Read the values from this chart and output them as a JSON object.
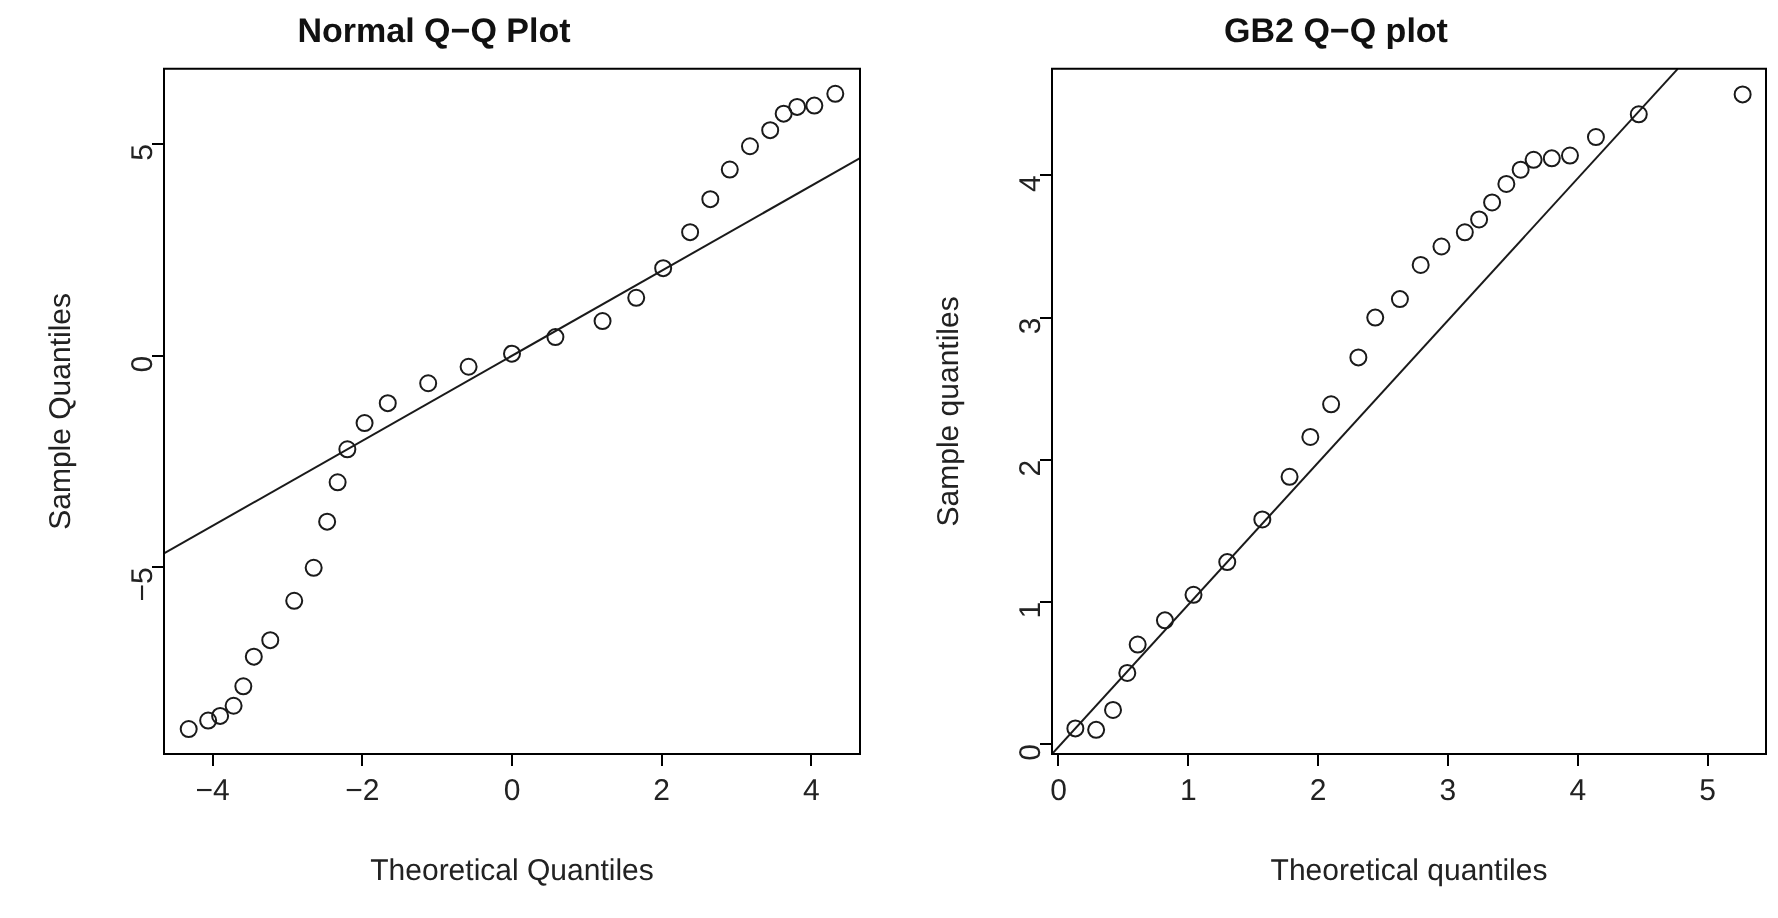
{
  "chart_data": [
    {
      "type": "scatter",
      "title": "Normal Q−Q Plot",
      "xlabel": "Theoretical Quantiles",
      "ylabel": "Sample Quantiles",
      "xlim": [
        -4.65,
        4.65
      ],
      "ylim": [
        -9.41,
        6.78
      ],
      "xticks": [
        -4,
        -2,
        0,
        2,
        4
      ],
      "yticks": [
        -5,
        0,
        5
      ],
      "legend": false,
      "grid": false,
      "series": [
        {
          "marker": "circle",
          "color": "#1a1a1a",
          "x": [
            -4.32,
            -4.06,
            -3.9,
            -3.72,
            -3.59,
            -3.45,
            -3.23,
            -2.91,
            -2.65,
            -2.47,
            -2.33,
            -2.2,
            -1.97,
            -1.66,
            -1.12,
            -0.58,
            0,
            0.58,
            1.21,
            1.66,
            2.02,
            2.38,
            2.65,
            2.91,
            3.18,
            3.45,
            3.63,
            3.81,
            4.04,
            4.32
          ],
          "values": [
            -8.82,
            -8.62,
            -8.51,
            -8.27,
            -7.81,
            -7.11,
            -6.72,
            -5.79,
            -5.01,
            -3.92,
            -2.99,
            -2.21,
            -1.59,
            -1.12,
            -0.65,
            -0.26,
            0.05,
            0.44,
            0.82,
            1.37,
            2.07,
            2.92,
            3.7,
            4.4,
            4.95,
            5.33,
            5.72,
            5.88,
            5.91,
            6.19
          ]
        },
        {
          "type": "line",
          "marker": "none",
          "color": "#1a1a1a",
          "x": [
            -4.65,
            4.65
          ],
          "values": [
            -4.67,
            4.67
          ]
        }
      ]
    },
    {
      "type": "scatter",
      "title": "GB2 Q−Q plot",
      "xlabel": "Theoretical quantiles",
      "ylabel": "Sample quantiles",
      "xlim": [
        -0.05,
        5.45
      ],
      "ylim": [
        -0.07,
        4.75
      ],
      "xticks": [
        0,
        1,
        2,
        3,
        4,
        5
      ],
      "yticks": [
        0,
        1,
        2,
        3,
        4
      ],
      "legend": false,
      "grid": false,
      "series": [
        {
          "marker": "circle",
          "color": "#1a1a1a",
          "x": [
            0.13,
            0.29,
            0.42,
            0.53,
            0.61,
            0.82,
            1.04,
            1.3,
            1.57,
            1.78,
            1.94,
            2.1,
            2.31,
            2.44,
            2.63,
            2.79,
            2.95,
            3.13,
            3.24,
            3.34,
            3.45,
            3.56,
            3.66,
            3.8,
            3.94,
            4.14,
            4.47,
            5.27
          ],
          "values": [
            0.11,
            0.1,
            0.24,
            0.5,
            0.7,
            0.87,
            1.05,
            1.28,
            1.58,
            1.88,
            2.16,
            2.39,
            2.72,
            3.0,
            3.13,
            3.37,
            3.5,
            3.6,
            3.69,
            3.81,
            3.94,
            4.04,
            4.11,
            4.12,
            4.14,
            4.27,
            4.43,
            4.57
          ]
        },
        {
          "type": "line",
          "marker": "none",
          "color": "#1a1a1a",
          "x": [
            -0.05,
            4.77
          ],
          "values": [
            -0.07,
            4.75
          ]
        }
      ]
    }
  ]
}
